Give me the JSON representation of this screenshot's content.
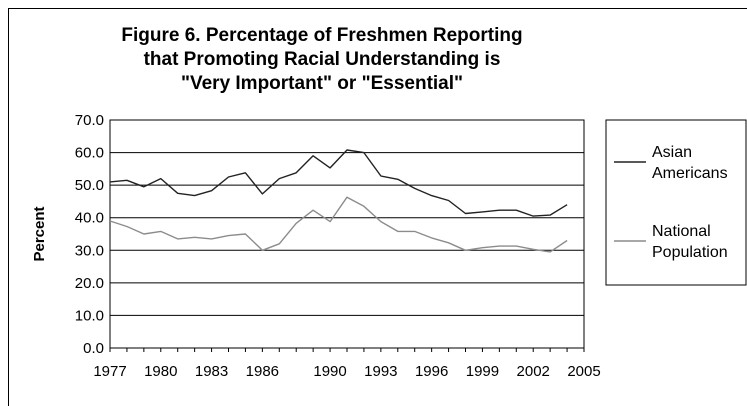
{
  "chart_data": {
    "type": "line",
    "title_lines": [
      "Figure 6. Percentage of Freshmen Reporting",
      "that Promoting Racial Understanding is",
      "\"Very Important\" or \"Essential\""
    ],
    "ylabel": "Percent",
    "xlabel": "",
    "ylim": [
      0,
      70
    ],
    "yticks": [
      "0.0",
      "10.0",
      "20.0",
      "30.0",
      "40.0",
      "50.0",
      "60.0",
      "70.0"
    ],
    "xlim": [
      1977,
      2005
    ],
    "xtick_labels": [
      "1977",
      "1980",
      "1983",
      "1986",
      "1990",
      "1993",
      "1996",
      "1999",
      "2002",
      "2005"
    ],
    "grid": "horizontal",
    "legend_position": "right",
    "x": [
      1977,
      1978,
      1979,
      1980,
      1981,
      1982,
      1983,
      1984,
      1985,
      1986,
      1987,
      1988,
      1989,
      1990,
      1991,
      1992,
      1993,
      1994,
      1995,
      1996,
      1997,
      1998,
      1999,
      2000,
      2001,
      2002,
      2003,
      2004,
      2005
    ],
    "series": [
      {
        "name": "Asian Americans",
        "legend_lines": [
          "Asian",
          "Americans"
        ],
        "color": "#222222",
        "values": [
          51.0,
          51.5,
          49.5,
          52.0,
          47.5,
          46.8,
          48.3,
          52.5,
          53.8,
          47.3,
          52.0,
          53.8,
          59.0,
          55.3,
          60.8,
          60.0,
          52.8,
          51.8,
          49.0,
          46.8,
          45.3,
          41.3,
          41.8,
          42.3,
          42.3,
          40.5,
          40.8,
          44.0,
          null
        ]
      },
      {
        "name": "National Population",
        "legend_lines": [
          "National",
          "Population"
        ],
        "color": "#8c8c8c",
        "values": [
          39.0,
          37.3,
          35.0,
          35.8,
          33.5,
          34.0,
          33.5,
          34.5,
          35.0,
          30.0,
          32.0,
          38.3,
          42.3,
          38.8,
          46.3,
          43.5,
          38.8,
          35.8,
          35.8,
          33.8,
          32.3,
          30.0,
          30.8,
          31.3,
          31.3,
          30.3,
          29.5,
          33.0,
          null
        ]
      }
    ]
  }
}
